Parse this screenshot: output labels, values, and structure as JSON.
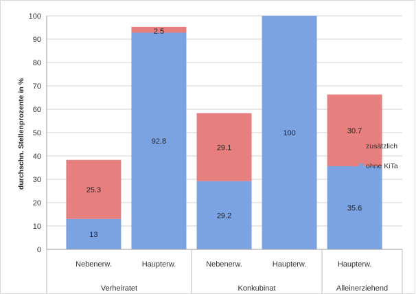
{
  "chart_data": {
    "type": "bar",
    "stacked": true,
    "ylabel": "durchschn. Stellenprozente in %",
    "ylim": [
      0,
      100
    ],
    "yticks": [
      0,
      10,
      20,
      30,
      40,
      50,
      60,
      70,
      80,
      90,
      100
    ],
    "categories": [
      "Nebenerw.",
      "Haupterw.",
      "Nebenerw.",
      "Haupterw.",
      "Haupterw."
    ],
    "groups": [
      {
        "label": "Verheiratet",
        "size": 2
      },
      {
        "label": "Konkubinat",
        "size": 2
      },
      {
        "label": "Alleinerziehend",
        "size": 1
      }
    ],
    "series": [
      {
        "name": "ohne KiTa",
        "color": "#7ba3e3",
        "values": [
          13,
          92.8,
          29.2,
          100,
          35.6
        ],
        "labels": [
          "13",
          "92.8",
          "29.2",
          "100",
          "35.6"
        ]
      },
      {
        "name": "zusätzlich",
        "color": "#e87f7f",
        "values": [
          25.3,
          2.5,
          29.1,
          0,
          30.7
        ],
        "labels": [
          "25.3",
          "2.5",
          "29.1",
          "",
          "30.7"
        ]
      }
    ],
    "legend_order": [
      "zusätzlich",
      "ohne KiTa"
    ],
    "legend_position": "right",
    "grid": true
  }
}
